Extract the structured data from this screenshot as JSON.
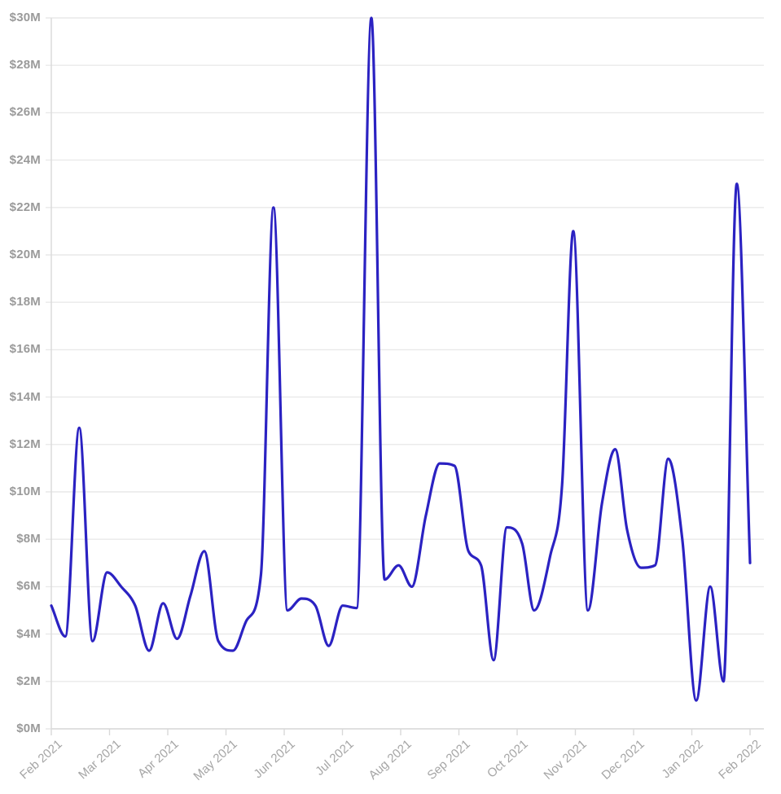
{
  "chart_data": {
    "type": "line",
    "title": "",
    "legend": "none",
    "grid": "horizontal",
    "x_axis": {
      "label": "",
      "tick_labels": [
        "Feb 2021",
        "Mar 2021",
        "Apr 2021",
        "May 2021",
        "Jun 2021",
        "Jul 2021",
        "Aug 2021",
        "Sep 2021",
        "Oct 2021",
        "Nov 2021",
        "Dec 2021",
        "Jan 2022",
        "Feb 2022"
      ]
    },
    "y_axis": {
      "label": "",
      "unit": "$M",
      "ylim": [
        0,
        30
      ],
      "tick_values_millions": [
        0,
        2,
        4,
        6,
        8,
        10,
        12,
        14,
        16,
        18,
        20,
        22,
        24,
        26,
        28,
        30
      ],
      "tick_labels": [
        "$0M",
        "$2M",
        "$4M",
        "$6M",
        "$8M",
        "$10M",
        "$12M",
        "$14M",
        "$16M",
        "$18M",
        "$20M",
        "$22M",
        "$24M",
        "$26M",
        "$28M",
        "$30M"
      ]
    },
    "series": [
      {
        "name": "value",
        "points": [
          {
            "t": 0.0,
            "value_millions": 5.2
          },
          {
            "t": 0.02,
            "value_millions": 3.9
          },
          {
            "t": 0.04,
            "value_millions": 12.7
          },
          {
            "t": 0.059,
            "value_millions": 3.7
          },
          {
            "t": 0.08,
            "value_millions": 6.6
          },
          {
            "t": 0.1,
            "value_millions": 6.0
          },
          {
            "t": 0.12,
            "value_millions": 5.2
          },
          {
            "t": 0.14,
            "value_millions": 3.3
          },
          {
            "t": 0.16,
            "value_millions": 5.3
          },
          {
            "t": 0.18,
            "value_millions": 3.8
          },
          {
            "t": 0.199,
            "value_millions": 5.6
          },
          {
            "t": 0.219,
            "value_millions": 7.5
          },
          {
            "t": 0.239,
            "value_millions": 3.7
          },
          {
            "t": 0.26,
            "value_millions": 3.3
          },
          {
            "t": 0.28,
            "value_millions": 4.6
          },
          {
            "t": 0.3,
            "value_millions": 6.5
          },
          {
            "t": 0.318,
            "value_millions": 22.0
          },
          {
            "t": 0.338,
            "value_millions": 5.0
          },
          {
            "t": 0.358,
            "value_millions": 5.5
          },
          {
            "t": 0.378,
            "value_millions": 5.2
          },
          {
            "t": 0.397,
            "value_millions": 3.5
          },
          {
            "t": 0.417,
            "value_millions": 5.2
          },
          {
            "t": 0.437,
            "value_millions": 5.1
          },
          {
            "t": 0.458,
            "value_millions": 30.0
          },
          {
            "t": 0.477,
            "value_millions": 6.3
          },
          {
            "t": 0.497,
            "value_millions": 6.9
          },
          {
            "t": 0.516,
            "value_millions": 6.0
          },
          {
            "t": 0.536,
            "value_millions": 9.0
          },
          {
            "t": 0.556,
            "value_millions": 11.2
          },
          {
            "t": 0.577,
            "value_millions": 11.1
          },
          {
            "t": 0.597,
            "value_millions": 7.5
          },
          {
            "t": 0.615,
            "value_millions": 6.9
          },
          {
            "t": 0.633,
            "value_millions": 2.9
          },
          {
            "t": 0.652,
            "value_millions": 8.5
          },
          {
            "t": 0.674,
            "value_millions": 7.8
          },
          {
            "t": 0.691,
            "value_millions": 5.0
          },
          {
            "t": 0.714,
            "value_millions": 7.3
          },
          {
            "t": 0.731,
            "value_millions": 10.3
          },
          {
            "t": 0.747,
            "value_millions": 21.0
          },
          {
            "t": 0.768,
            "value_millions": 5.0
          },
          {
            "t": 0.788,
            "value_millions": 9.5
          },
          {
            "t": 0.807,
            "value_millions": 11.8
          },
          {
            "t": 0.824,
            "value_millions": 8.4
          },
          {
            "t": 0.844,
            "value_millions": 6.8
          },
          {
            "t": 0.864,
            "value_millions": 6.9
          },
          {
            "t": 0.883,
            "value_millions": 11.4
          },
          {
            "t": 0.903,
            "value_millions": 8.0
          },
          {
            "t": 0.923,
            "value_millions": 1.2
          },
          {
            "t": 0.943,
            "value_millions": 6.0
          },
          {
            "t": 0.962,
            "value_millions": 2.0
          },
          {
            "t": 0.981,
            "value_millions": 23.0
          },
          {
            "t": 1.0,
            "value_millions": 7.0
          }
        ]
      }
    ]
  },
  "theme": {
    "line_color": "#2b22c2",
    "gridline_color": "#e9e9e9",
    "axis_color": "#d9d9d9",
    "y_label_color": "#9a9a9a",
    "x_label_color": "#a5a5a5",
    "background": "#ffffff"
  }
}
